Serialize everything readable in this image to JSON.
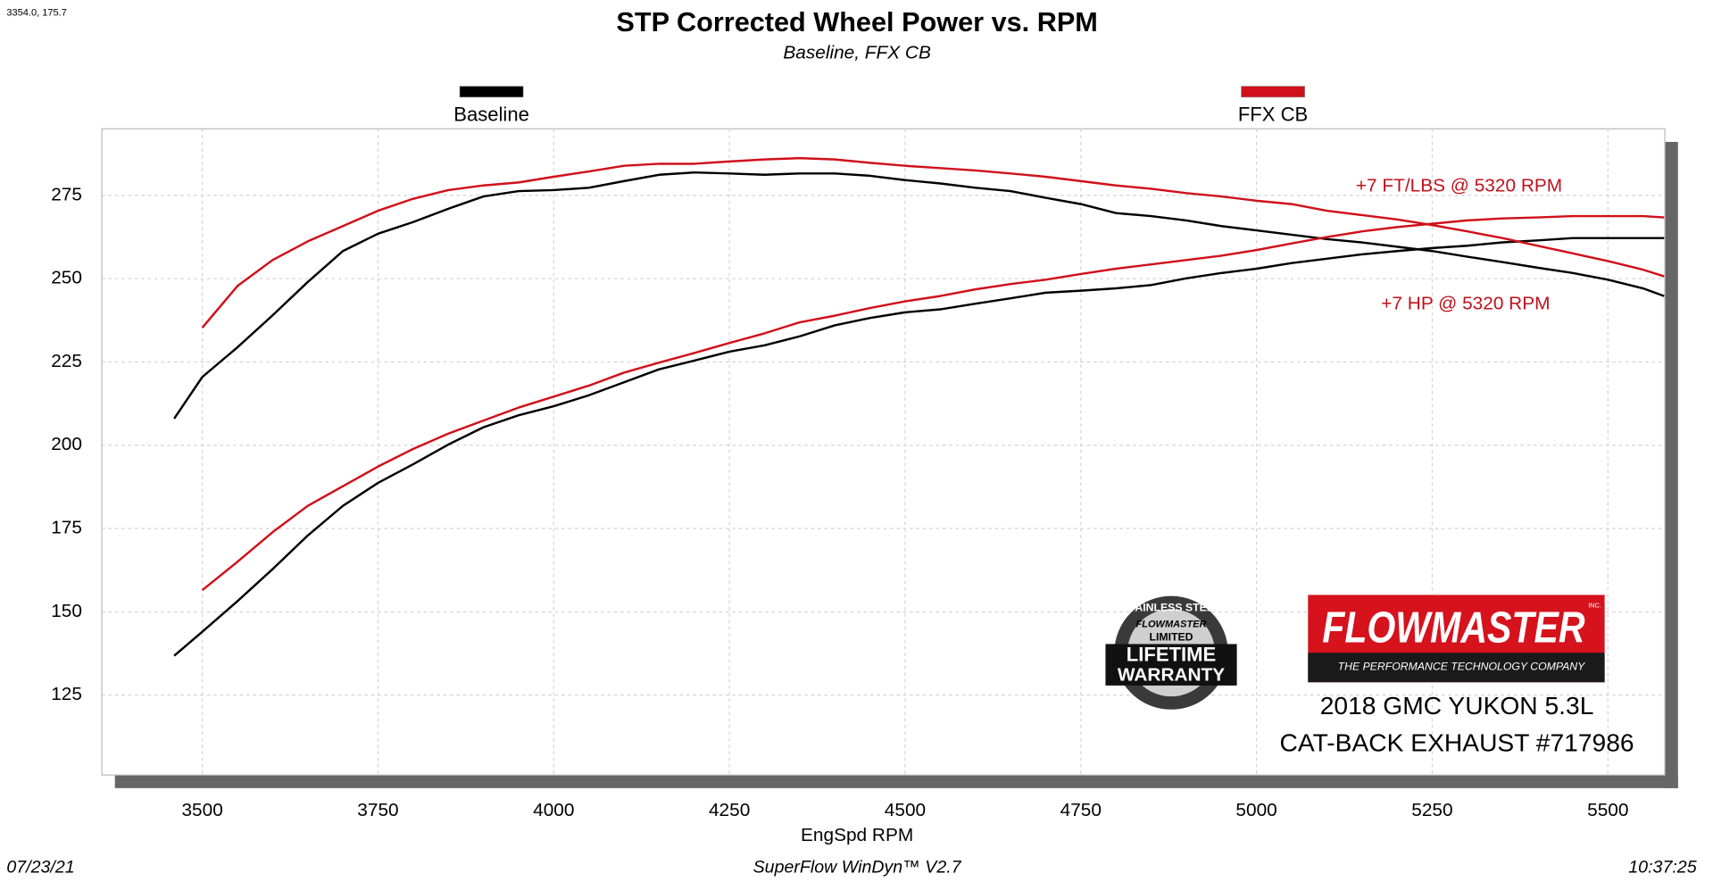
{
  "corner_readout": "3354.0, 175.7",
  "chart_data": {
    "type": "line",
    "title": "STP Corrected Wheel Power vs. RPM",
    "subtitle": "Baseline, FFX CB",
    "x_label": "EngSpd  RPM",
    "xlim": [
      3357,
      5581
    ],
    "ylim": [
      101,
      295
    ],
    "xticks": [
      3500,
      3750,
      4000,
      4250,
      4500,
      4750,
      5000,
      5250,
      5500
    ],
    "yticks": [
      125,
      150,
      175,
      200,
      225,
      250,
      275
    ],
    "grid": true,
    "x": [
      3460,
      3500,
      3550,
      3600,
      3650,
      3700,
      3750,
      3800,
      3850,
      3900,
      3950,
      4000,
      4050,
      4100,
      4150,
      4200,
      4250,
      4300,
      4350,
      4400,
      4450,
      4500,
      4550,
      4600,
      4650,
      4700,
      4750,
      4800,
      4850,
      4900,
      4950,
      5000,
      5050,
      5100,
      5150,
      5200,
      5250,
      5300,
      5350,
      5400,
      5450,
      5500,
      5550,
      5580
    ],
    "series": [
      {
        "name": "Baseline",
        "color": "#000000",
        "torque": [
          208,
          220.5,
          229.4,
          239,
          249,
          258.3,
          263.5,
          267,
          271,
          274.7,
          276.3,
          276.6,
          277.3,
          279.3,
          281.2,
          281.9,
          281.6,
          281.2,
          281.6,
          281.6,
          280.9,
          279.6,
          278.6,
          277.3,
          276.3,
          274.3,
          272.4,
          269.7,
          268.8,
          267.5,
          265.8,
          264.5,
          263.2,
          261.9,
          260.9,
          259.6,
          258.3,
          256.6,
          255,
          253.3,
          251.7,
          249.7,
          247.1,
          244.8
        ],
        "hp": [
          136.8,
          144,
          153.2,
          162.8,
          172.9,
          181.8,
          188.7,
          194.3,
          200.2,
          205.4,
          209,
          211.7,
          215,
          218.9,
          222.8,
          225.4,
          228.1,
          230,
          232.7,
          236,
          238.2,
          239.9,
          240.8,
          242.5,
          244.1,
          245.8,
          246.4,
          247.1,
          248.1,
          250.1,
          251.7,
          253,
          254.7,
          256,
          257.3,
          258.3,
          259.2,
          259.9,
          260.9,
          261.5,
          262.2,
          262.2,
          262.2,
          262.2
        ]
      },
      {
        "name": "FFX CB",
        "color": "#d0101a",
        "torque": [
          null,
          235.3,
          247.8,
          255.6,
          261.2,
          265.8,
          270.4,
          274,
          276.6,
          278,
          278.9,
          280.6,
          282.2,
          283.9,
          284.5,
          284.5,
          285.2,
          285.8,
          286.2,
          285.8,
          284.8,
          283.9,
          283.2,
          282.5,
          281.6,
          280.6,
          279.3,
          278,
          277,
          275.7,
          274.7,
          273.4,
          272.4,
          270.4,
          269.1,
          267.8,
          266.1,
          264.2,
          262.2,
          259.9,
          257.6,
          255.3,
          252.7,
          250.7
        ],
        "hp": [
          null,
          156.5,
          165,
          173.9,
          181.8,
          187.7,
          193.6,
          198.9,
          203.5,
          207.4,
          211.3,
          214.6,
          217.9,
          221.8,
          224.8,
          227.7,
          230.7,
          233.6,
          236.9,
          238.9,
          241.2,
          243.2,
          244.8,
          246.8,
          248.4,
          249.7,
          251.4,
          253,
          254.3,
          255.6,
          256.9,
          258.6,
          260.6,
          262.5,
          264.2,
          265.5,
          266.5,
          267.5,
          268.1,
          268.4,
          268.8,
          268.8,
          268.8,
          268.4
        ]
      }
    ],
    "annotations": [
      "+7 FT/LBS @ 5320 RPM",
      "+7 HP @ 5320 RPM"
    ]
  },
  "footer": {
    "date": "07/23/21",
    "software": "SuperFlow WinDyn™ V2.7",
    "time": "10:37:25"
  },
  "badge": {
    "ring": "STAINLESS STEEL",
    "brand": "FLOWMASTER",
    "limited": "LIMITED",
    "line1": "LIFETIME",
    "line2": "WARRANTY"
  },
  "logo": {
    "brand": "FLOWMASTER",
    "inc": "INC.",
    "tagline": "THE PERFORMANCE TECHNOLOGY COMPANY"
  },
  "vehicle": {
    "model": "2018 GMC YUKON 5.3L",
    "product": "CAT-BACK EXHAUST #717986"
  }
}
